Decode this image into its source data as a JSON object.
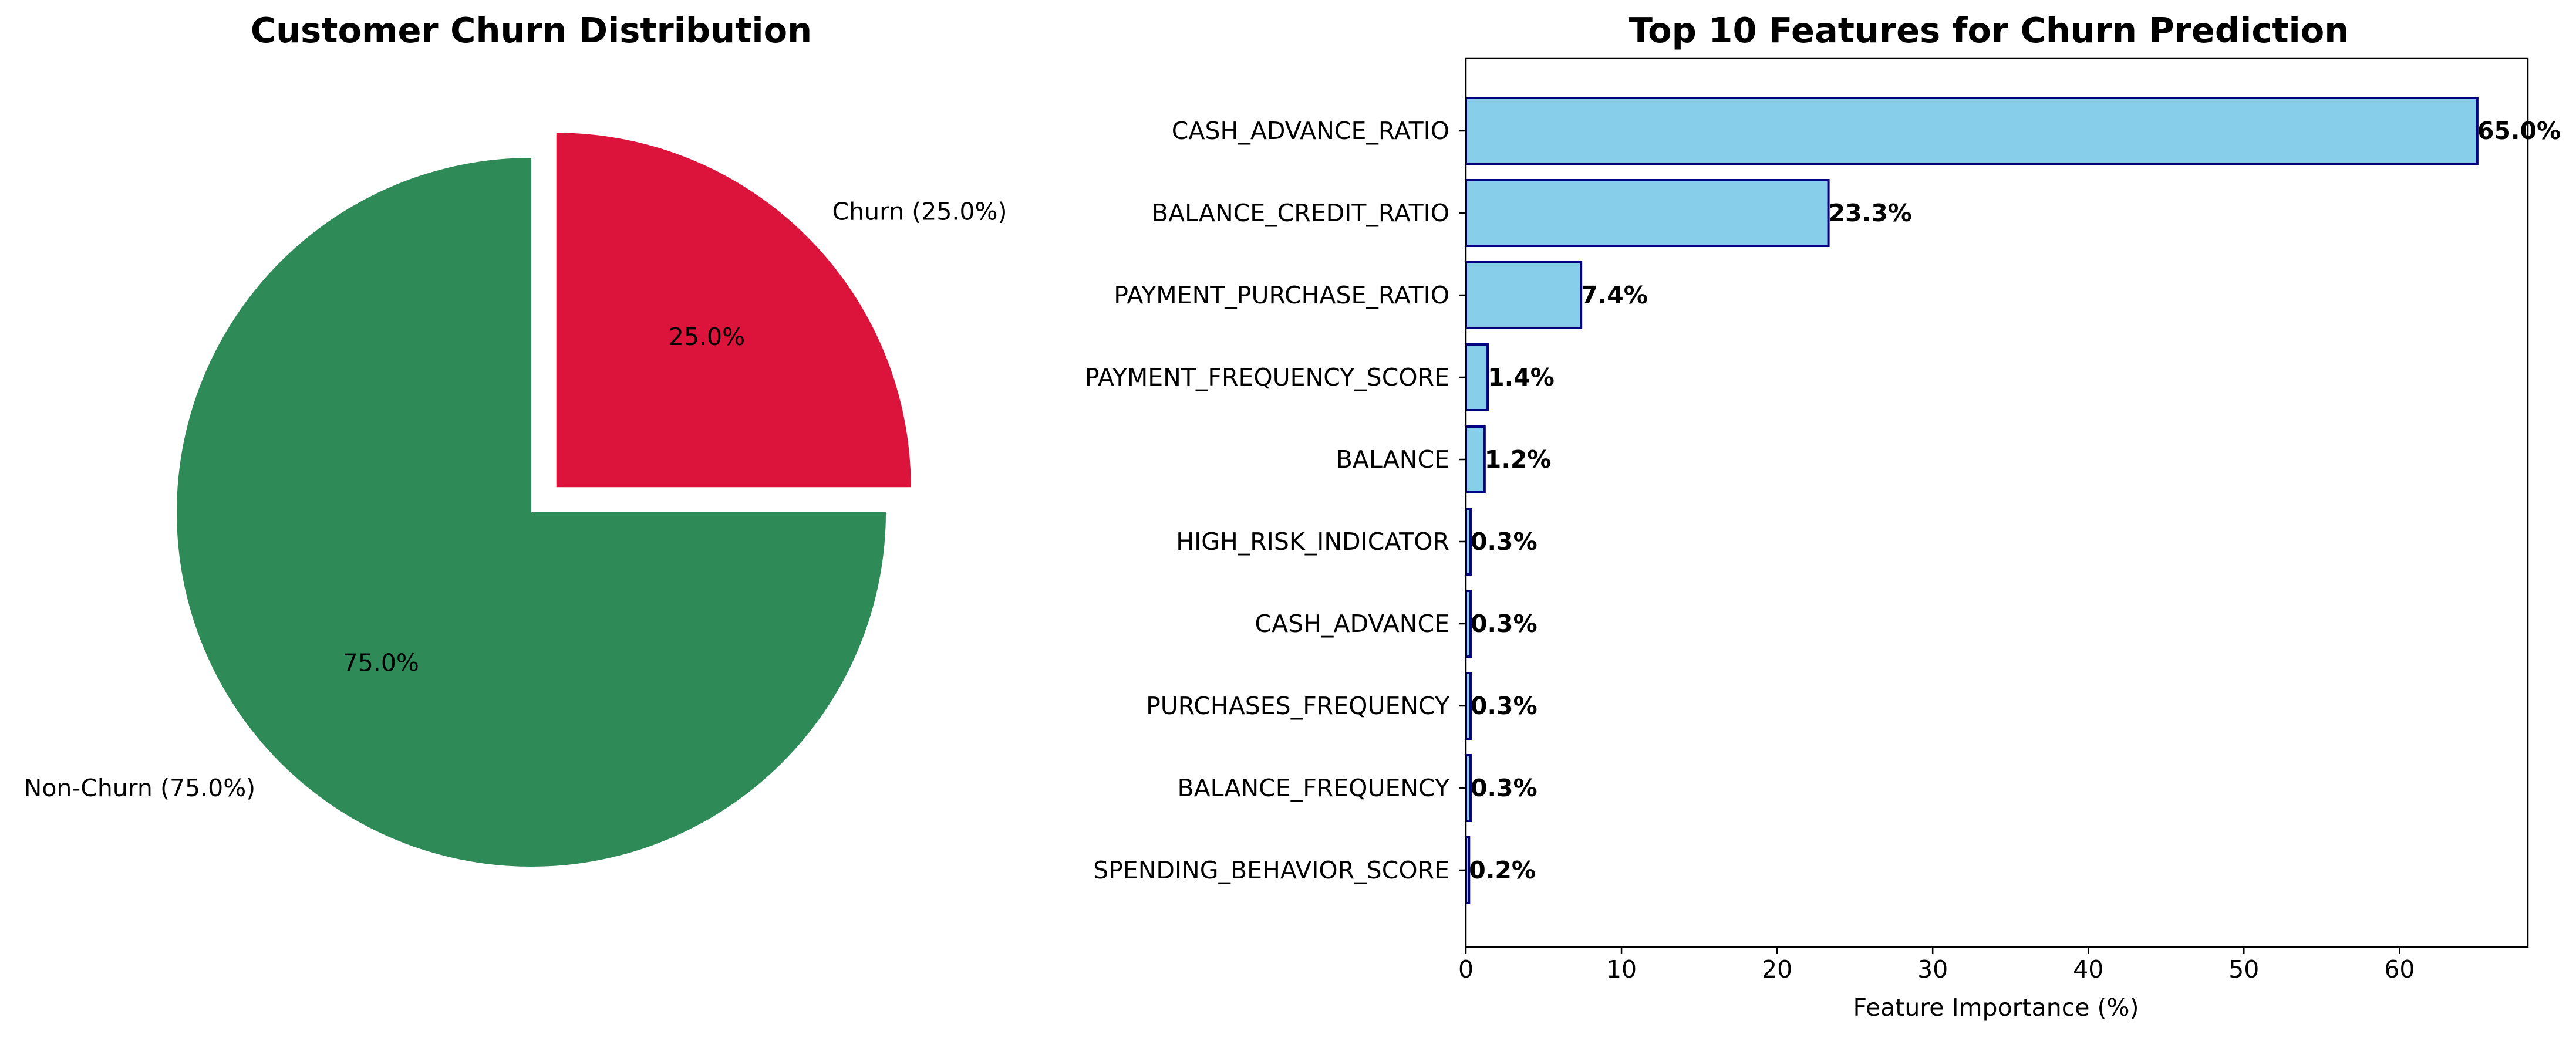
{
  "chart_data": [
    {
      "type": "pie",
      "title": "Customer Churn Distribution",
      "slices": [
        {
          "label": "Non-Churn (75.0%)",
          "value": 75.0,
          "pct_label": "75.0%",
          "color": "#2e8b57",
          "exploded": false
        },
        {
          "label": "Churn (25.0%)",
          "value": 25.0,
          "pct_label": "25.0%",
          "color": "#dc143c",
          "exploded": true
        }
      ],
      "start_angle_deg": 90,
      "direction": "counterclockwise"
    },
    {
      "type": "bar",
      "orientation": "horizontal",
      "title": "Top 10 Features for Churn Prediction",
      "xlabel": "Feature Importance (%)",
      "ylabel": "",
      "xlim": [
        0,
        68.25
      ],
      "xticks": [
        0,
        10,
        20,
        30,
        40,
        50,
        60
      ],
      "grid": false,
      "bar_color": "#87ceeb",
      "edge_color": "#000080",
      "categories": [
        "CASH_ADVANCE_RATIO",
        "BALANCE_CREDIT_RATIO",
        "PAYMENT_PURCHASE_RATIO",
        "PAYMENT_FREQUENCY_SCORE",
        "BALANCE",
        "HIGH_RISK_INDICATOR",
        "CASH_ADVANCE",
        "PURCHASES_FREQUENCY",
        "BALANCE_FREQUENCY",
        "SPENDING_BEHAVIOR_SCORE"
      ],
      "values": [
        65.0,
        23.3,
        7.4,
        1.4,
        1.2,
        0.3,
        0.3,
        0.3,
        0.3,
        0.2
      ],
      "value_labels": [
        "65.0%",
        "23.3%",
        "7.4%",
        "1.4%",
        "1.2%",
        "0.3%",
        "0.3%",
        "0.3%",
        "0.3%",
        "0.2%"
      ]
    }
  ]
}
